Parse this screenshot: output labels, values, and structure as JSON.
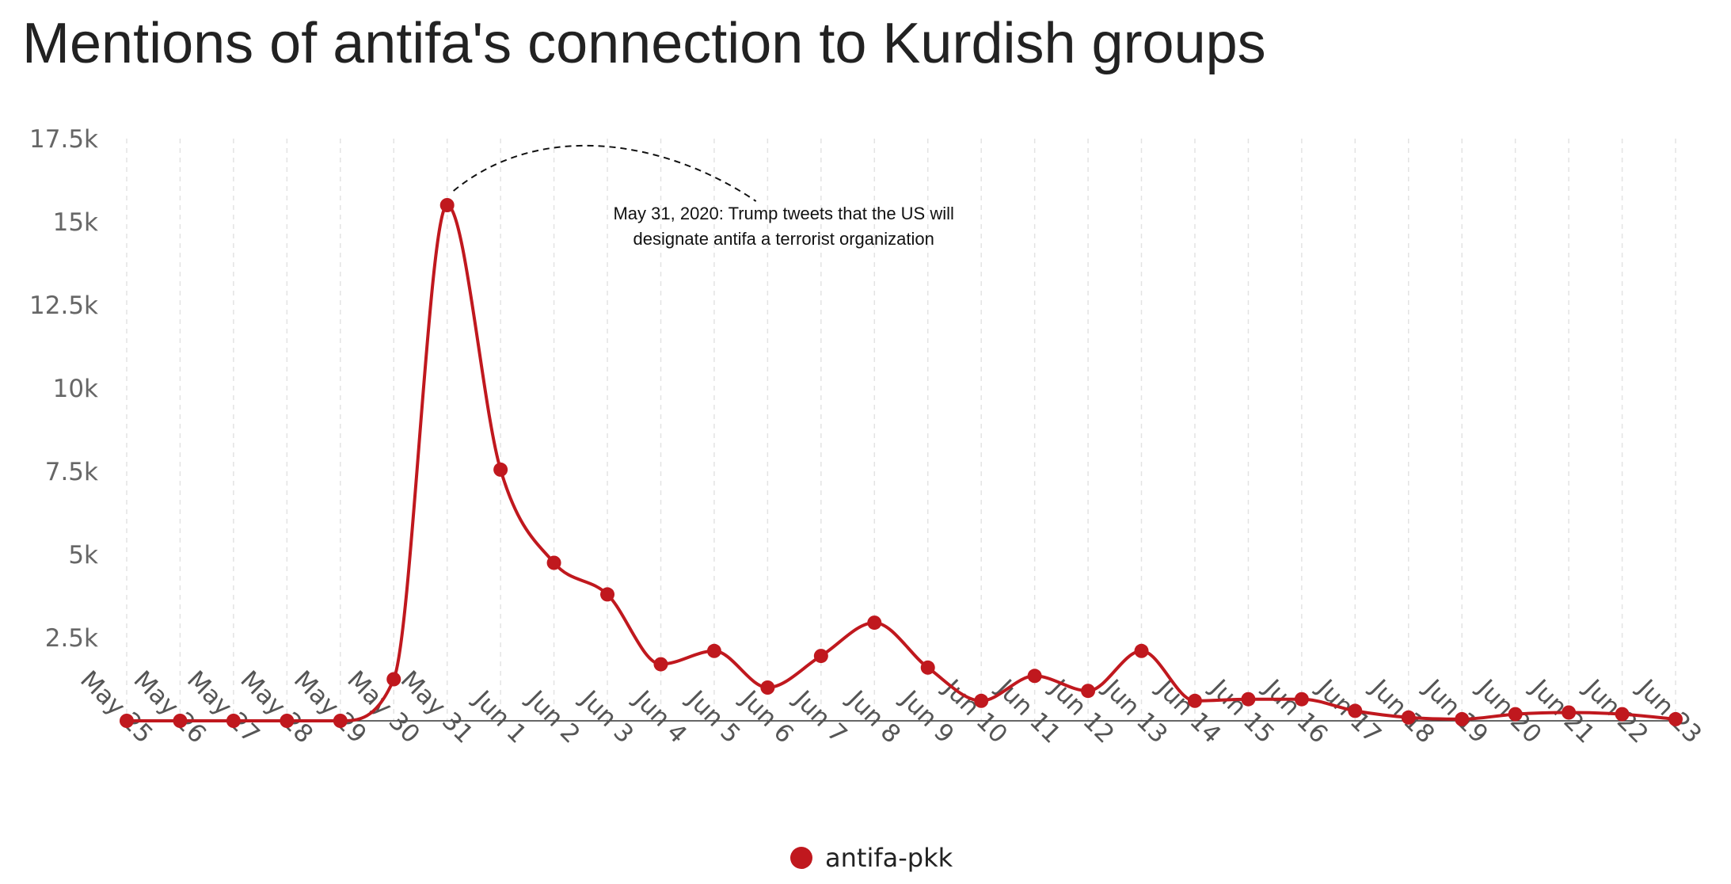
{
  "chart_data": {
    "type": "line",
    "title": "Mentions of antifa's connection to Kurdish groups",
    "xlabel": "",
    "ylabel": "",
    "categories": [
      "May 25",
      "May 26",
      "May 27",
      "May 28",
      "May 29",
      "May 30",
      "May 31",
      "Jun 1",
      "Jun 2",
      "Jun 3",
      "Jun 4",
      "Jun 5",
      "Jun 6",
      "Jun 7",
      "Jun 8",
      "Jun 9",
      "Jun 10",
      "Jun 11",
      "Jun 12",
      "Jun 13",
      "Jun 14",
      "Jun 15",
      "Jun 16",
      "Jun 17",
      "Jun 18",
      "Jun 19",
      "Jun 20",
      "Jun 21",
      "Jun 22",
      "Jun 23"
    ],
    "series": [
      {
        "name": "antifa-pkk",
        "color": "#c0181e",
        "values": [
          0,
          0,
          0,
          0,
          0,
          1250,
          15500,
          7550,
          4750,
          3800,
          1700,
          2100,
          1000,
          1950,
          2950,
          1600,
          600,
          1350,
          900,
          2100,
          600,
          650,
          650,
          300,
          100,
          50,
          200,
          250,
          200,
          50
        ]
      }
    ],
    "ylim": [
      0,
      17500
    ],
    "yticks": [
      {
        "value": 2500,
        "label": "2.5k"
      },
      {
        "value": 5000,
        "label": "5k"
      },
      {
        "value": 7500,
        "label": "7.5k"
      },
      {
        "value": 10000,
        "label": "10k"
      },
      {
        "value": 12500,
        "label": "12.5k"
      },
      {
        "value": 15000,
        "label": "15k"
      },
      {
        "value": 17500,
        "label": "17.5k"
      }
    ],
    "grid": "vertical-dashed",
    "legend_position": "bottom-center",
    "annotation": {
      "category": "May 31",
      "lines": [
        "May 31, 2020: Trump tweets that the US will",
        "designate antifa a terrorist organization"
      ]
    }
  }
}
